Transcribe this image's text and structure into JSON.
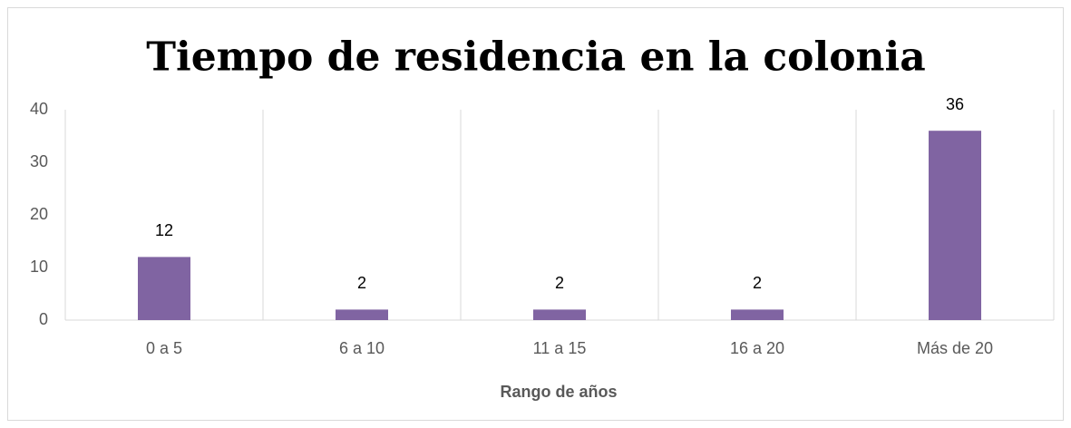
{
  "chart_data": {
    "type": "bar",
    "title": "Tiempo de residencia en la colonia",
    "x_label": "Rango de años",
    "categories": [
      "0 a 5",
      "6 a 10",
      "11 a 15",
      "16 a 20",
      "Más de 20"
    ],
    "values": [
      12,
      2,
      2,
      2,
      36
    ],
    "color": "#8064a2",
    "ylim": [
      0,
      40
    ],
    "yticks": [
      0,
      10,
      20,
      30,
      40
    ]
  }
}
